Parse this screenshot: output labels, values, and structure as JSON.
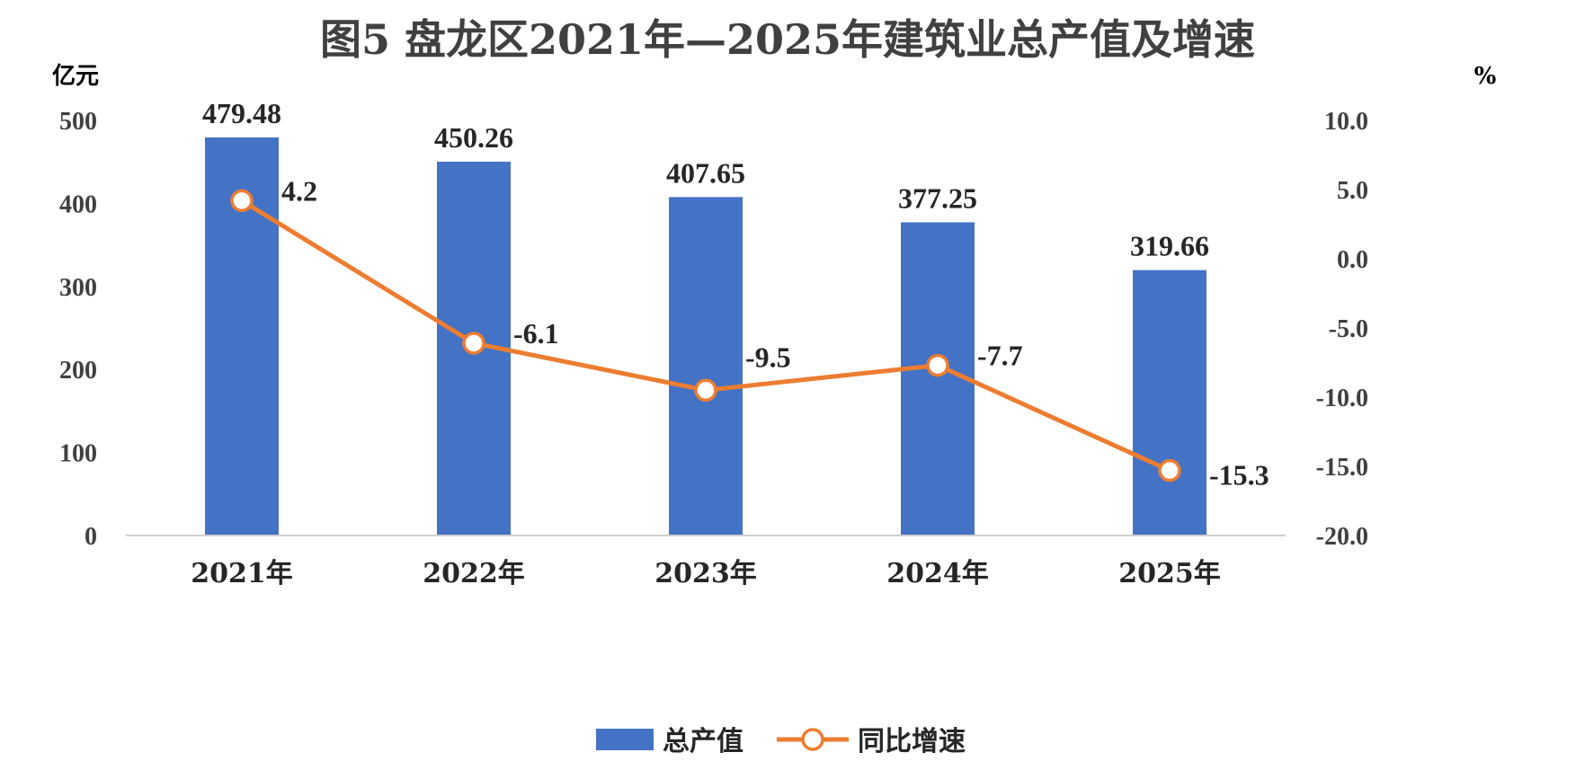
{
  "chart_data": {
    "type": "bar+line",
    "title": "图5  盘龙区2021年—2025年建筑业总产值及增速",
    "categories": [
      "2021年",
      "2022年",
      "2023年",
      "2024年",
      "2025年"
    ],
    "y_left": {
      "unit": "亿元",
      "range": [
        0,
        500
      ],
      "ticks": [
        "0",
        "100",
        "200",
        "300",
        "400",
        "500"
      ]
    },
    "y_right": {
      "unit": "%",
      "range": [
        -20,
        10
      ],
      "ticks": [
        "-20.0",
        "-15.0",
        "-10.0",
        "-5.0",
        "0.0",
        "5.0",
        "10.0"
      ]
    },
    "series": [
      {
        "name": "总产值",
        "type": "bar",
        "axis": "left",
        "color": "#4472C4",
        "values": [
          479.48,
          450.26,
          407.65,
          377.25,
          319.66
        ],
        "labels": [
          "479.48",
          "450.26",
          "407.65",
          "377.25",
          "319.66"
        ]
      },
      {
        "name": "同比增速",
        "type": "line",
        "axis": "right",
        "color": "#ED7D31",
        "values": [
          4.2,
          -6.1,
          -9.5,
          -7.7,
          -15.3
        ],
        "labels": [
          "4.2",
          "-6.1",
          "-9.5",
          "-7.7",
          "-15.3"
        ]
      }
    ],
    "grid": false,
    "legend_position": "bottom"
  }
}
